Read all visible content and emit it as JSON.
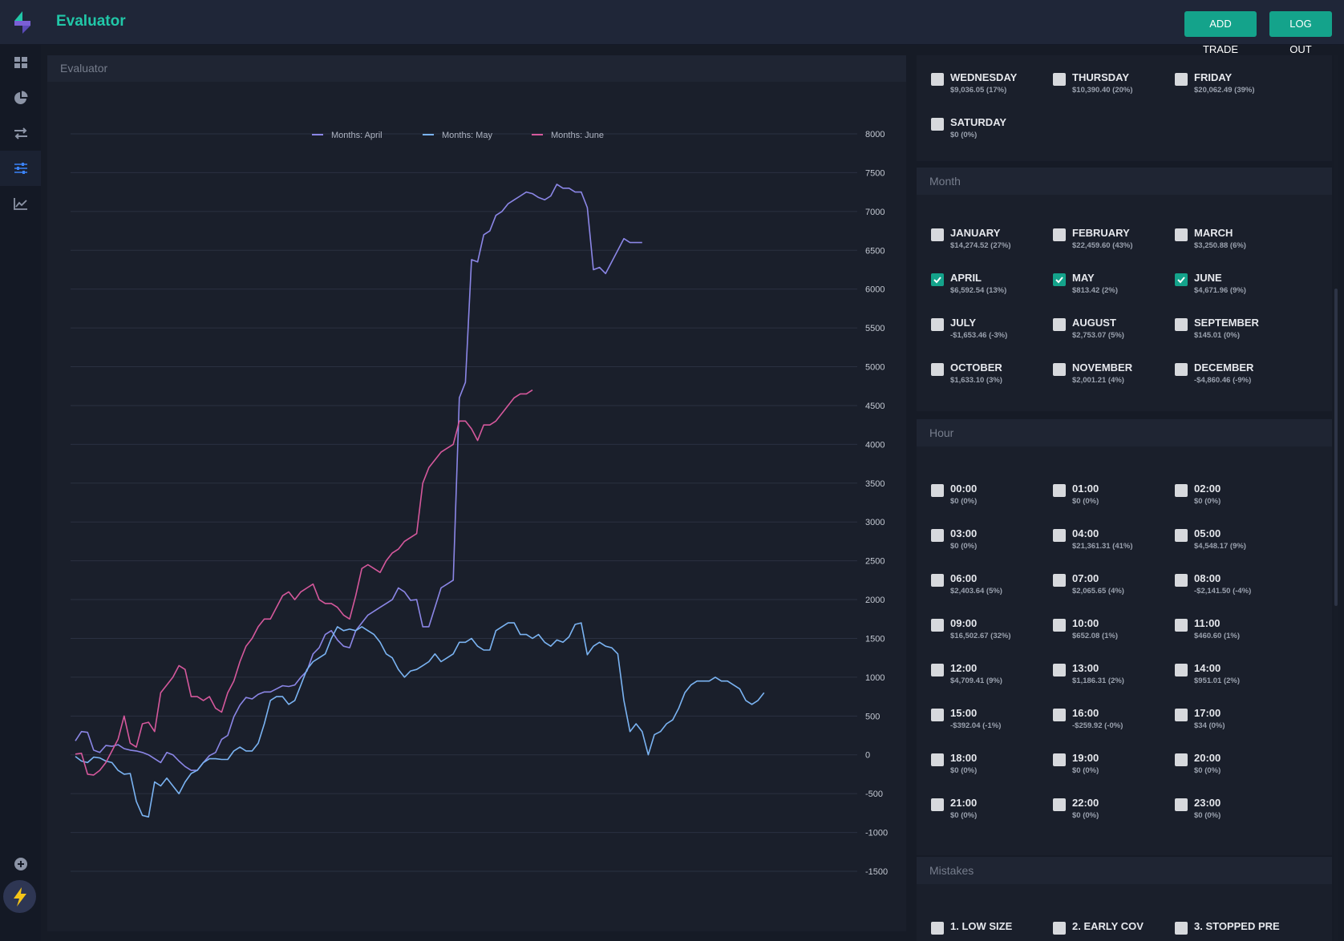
{
  "app": {
    "title": "Evaluator"
  },
  "header": {
    "add_trade": "ADD TRADE",
    "log_out": "LOG OUT"
  },
  "sidebar": {
    "items": [
      {
        "name": "dashboard-icon",
        "active": false
      },
      {
        "name": "pie-chart-icon",
        "active": false
      },
      {
        "name": "transfer-arrows-icon",
        "active": false
      },
      {
        "name": "sliders-icon",
        "active": true
      },
      {
        "name": "trending-chart-icon",
        "active": false
      }
    ],
    "bottom": [
      "add-circle-icon",
      "gear-icon",
      "lightning-icon"
    ]
  },
  "chart_panel": {
    "title": "Evaluator"
  },
  "colors": {
    "accent": "#14a38b",
    "april": "#8b86e6",
    "may": "#7ab3f2",
    "june": "#d5589c"
  },
  "chart_data": {
    "type": "line",
    "y_ticks": [
      8000,
      7500,
      7000,
      6500,
      6000,
      5500,
      5000,
      4500,
      4000,
      3500,
      3000,
      2500,
      2000,
      1500,
      1000,
      500,
      0,
      -500,
      -1000,
      -1500
    ],
    "ylim": [
      -1500,
      8000
    ],
    "y_axis_side": "right",
    "grid": true,
    "legend_position": "top",
    "series": [
      {
        "name": "Months: April",
        "color": "#8b86e6",
        "values": [
          180,
          300,
          290,
          60,
          30,
          120,
          110,
          130,
          80,
          60,
          50,
          30,
          0,
          -50,
          -100,
          30,
          0,
          -80,
          -150,
          -200,
          -200,
          -100,
          -10,
          30,
          200,
          250,
          490,
          640,
          740,
          720,
          780,
          810,
          810,
          850,
          890,
          880,
          900,
          1000,
          1080,
          1300,
          1380,
          1550,
          1600,
          1480,
          1400,
          1380,
          1600,
          1700,
          1800,
          1850,
          1900,
          1950,
          2000,
          2150,
          2100,
          1990,
          2000,
          1650,
          1650,
          1900,
          2150,
          2200,
          2250,
          4600,
          4800,
          6380,
          6350,
          6700,
          6750,
          6950,
          7000,
          7100,
          7150,
          7200,
          7250,
          7230,
          7180,
          7150,
          7200,
          7350,
          7300,
          7300,
          7250,
          7250,
          7050,
          6250,
          6280,
          6200,
          6350,
          6500,
          6650,
          6600,
          6600,
          6600
        ]
      },
      {
        "name": "Months: May",
        "color": "#7ab3f2",
        "values": [
          -20,
          -80,
          -100,
          -30,
          -40,
          -80,
          -100,
          -200,
          -250,
          -240,
          -600,
          -780,
          -800,
          -350,
          -400,
          -300,
          -400,
          -500,
          -350,
          -240,
          -200,
          -100,
          -50,
          -50,
          -60,
          -60,
          50,
          100,
          50,
          50,
          150,
          400,
          700,
          750,
          750,
          650,
          700,
          900,
          1100,
          1200,
          1250,
          1300,
          1500,
          1650,
          1600,
          1620,
          1600,
          1650,
          1600,
          1550,
          1450,
          1300,
          1250,
          1100,
          1000,
          1080,
          1100,
          1150,
          1200,
          1300,
          1200,
          1250,
          1300,
          1450,
          1450,
          1500,
          1400,
          1350,
          1350,
          1600,
          1650,
          1700,
          1700,
          1550,
          1550,
          1500,
          1550,
          1450,
          1400,
          1480,
          1450,
          1520,
          1680,
          1700,
          1290,
          1400,
          1450,
          1400,
          1380,
          1300,
          700,
          300,
          400,
          300,
          0,
          260,
          300,
          400,
          450,
          600,
          800,
          900,
          950,
          950,
          950,
          1000,
          950,
          950,
          900,
          850,
          700,
          650,
          700,
          800
        ]
      },
      {
        "name": "Months: June",
        "color": "#d5589c",
        "values": [
          10,
          20,
          -250,
          -260,
          -200,
          -100,
          50,
          200,
          500,
          150,
          100,
          400,
          420,
          300,
          800,
          900,
          1000,
          1150,
          1100,
          750,
          750,
          700,
          750,
          600,
          550,
          800,
          950,
          1200,
          1400,
          1500,
          1650,
          1750,
          1750,
          1900,
          2050,
          2100,
          2000,
          2100,
          2150,
          2200,
          2000,
          1950,
          1950,
          1900,
          1800,
          1750,
          2050,
          2400,
          2450,
          2400,
          2350,
          2500,
          2600,
          2650,
          2750,
          2800,
          2850,
          3500,
          3700,
          3800,
          3900,
          3950,
          4000,
          4300,
          4300,
          4200,
          4050,
          4250,
          4250,
          4300,
          4400,
          4500,
          4600,
          4650,
          4650,
          4700
        ]
      }
    ]
  },
  "weekday_section": {
    "items": [
      {
        "label": "WEDNESDAY",
        "value": "$9,036.05 (17%)",
        "checked": false
      },
      {
        "label": "THURSDAY",
        "value": "$10,390.40 (20%)",
        "checked": false
      },
      {
        "label": "FRIDAY",
        "value": "$20,062.49 (39%)",
        "checked": false
      },
      {
        "label": "SATURDAY",
        "value": "$0 (0%)",
        "checked": false
      }
    ]
  },
  "month_section": {
    "title": "Month",
    "items": [
      {
        "label": "JANUARY",
        "value": "$14,274.52 (27%)",
        "checked": false
      },
      {
        "label": "FEBRUARY",
        "value": "$22,459.60 (43%)",
        "checked": false
      },
      {
        "label": "MARCH",
        "value": "$3,250.88 (6%)",
        "checked": false
      },
      {
        "label": "APRIL",
        "value": "$6,592.54 (13%)",
        "checked": true
      },
      {
        "label": "MAY",
        "value": "$813.42 (2%)",
        "checked": true
      },
      {
        "label": "JUNE",
        "value": "$4,671.96 (9%)",
        "checked": true
      },
      {
        "label": "JULY",
        "value": "-$1,653.46 (-3%)",
        "checked": false
      },
      {
        "label": "AUGUST",
        "value": "$2,753.07 (5%)",
        "checked": false
      },
      {
        "label": "SEPTEMBER",
        "value": "$145.01 (0%)",
        "checked": false
      },
      {
        "label": "OCTOBER",
        "value": "$1,633.10 (3%)",
        "checked": false
      },
      {
        "label": "NOVEMBER",
        "value": "$2,001.21 (4%)",
        "checked": false
      },
      {
        "label": "DECEMBER",
        "value": "-$4,860.46 (-9%)",
        "checked": false
      }
    ]
  },
  "hour_section": {
    "title": "Hour",
    "items": [
      {
        "label": "00:00",
        "value": "$0 (0%)",
        "checked": false
      },
      {
        "label": "01:00",
        "value": "$0 (0%)",
        "checked": false
      },
      {
        "label": "02:00",
        "value": "$0 (0%)",
        "checked": false
      },
      {
        "label": "03:00",
        "value": "$0 (0%)",
        "checked": false
      },
      {
        "label": "04:00",
        "value": "$21,361.31 (41%)",
        "checked": false
      },
      {
        "label": "05:00",
        "value": "$4,548.17 (9%)",
        "checked": false
      },
      {
        "label": "06:00",
        "value": "$2,403.64 (5%)",
        "checked": false
      },
      {
        "label": "07:00",
        "value": "$2,065.65 (4%)",
        "checked": false
      },
      {
        "label": "08:00",
        "value": "-$2,141.50 (-4%)",
        "checked": false
      },
      {
        "label": "09:00",
        "value": "$16,502.67 (32%)",
        "checked": false
      },
      {
        "label": "10:00",
        "value": "$652.08 (1%)",
        "checked": false
      },
      {
        "label": "11:00",
        "value": "$460.60 (1%)",
        "checked": false
      },
      {
        "label": "12:00",
        "value": "$4,709.41 (9%)",
        "checked": false
      },
      {
        "label": "13:00",
        "value": "$1,186.31 (2%)",
        "checked": false
      },
      {
        "label": "14:00",
        "value": "$951.01 (2%)",
        "checked": false
      },
      {
        "label": "15:00",
        "value": "-$392.04 (-1%)",
        "checked": false
      },
      {
        "label": "16:00",
        "value": "-$259.92 (-0%)",
        "checked": false
      },
      {
        "label": "17:00",
        "value": "$34 (0%)",
        "checked": false
      },
      {
        "label": "18:00",
        "value": "$0 (0%)",
        "checked": false
      },
      {
        "label": "19:00",
        "value": "$0 (0%)",
        "checked": false
      },
      {
        "label": "20:00",
        "value": "$0 (0%)",
        "checked": false
      },
      {
        "label": "21:00",
        "value": "$0 (0%)",
        "checked": false
      },
      {
        "label": "22:00",
        "value": "$0 (0%)",
        "checked": false
      },
      {
        "label": "23:00",
        "value": "$0 (0%)",
        "checked": false
      }
    ]
  },
  "mistakes_section": {
    "title": "Mistakes",
    "items": [
      {
        "label": "1. LOW SIZE",
        "checked": false
      },
      {
        "label": "2. EARLY COV",
        "checked": false
      },
      {
        "label": "3. STOPPED PRE",
        "checked": false
      }
    ]
  }
}
